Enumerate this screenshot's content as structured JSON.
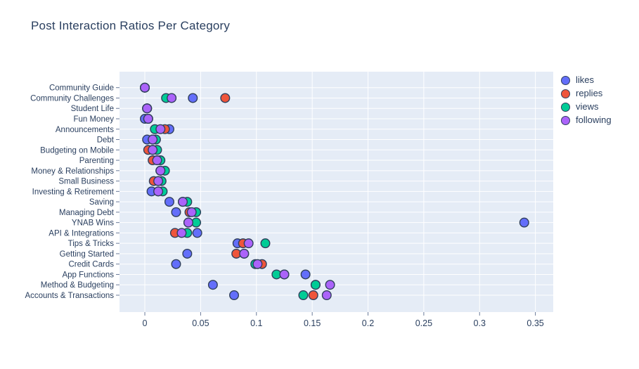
{
  "title": "Post Interaction Ratios Per Category",
  "colors": {
    "background": "#ffffff",
    "plot_background": "#e5ecf6",
    "grid": "#ffffff",
    "font": "#2a3f5f",
    "tick_mark": "#6b7b9a",
    "marker_edge": "#2f3f5c"
  },
  "legend": {
    "items": [
      {
        "label": "likes",
        "color": "#636efa"
      },
      {
        "label": "replies",
        "color": "#ef553b"
      },
      {
        "label": "views",
        "color": "#00cc96"
      },
      {
        "label": "following",
        "color": "#ab63fa"
      }
    ]
  },
  "chart_data": {
    "type": "scatter",
    "title": "Post Interaction Ratios Per Category",
    "xlabel": "",
    "ylabel": "",
    "grid": true,
    "legend_position": "right",
    "xlim": [
      -0.0227,
      0.366
    ],
    "x_ticks": [
      0,
      0.05,
      0.1,
      0.15,
      0.2,
      0.25,
      0.3,
      0.35
    ],
    "x_tick_labels": [
      "0",
      "0.05",
      "0.1",
      "0.15",
      "0.2",
      "0.25",
      "0.3",
      "0.35"
    ],
    "categories": [
      "Community Guide",
      "Community Challenges",
      "Student Life",
      "Fun Money",
      "Announcements",
      "Debt",
      "Budgeting on Mobile",
      "Parenting",
      "Money & Relationships",
      "Small Business",
      "Investing & Retirement",
      "Saving",
      "Managing Debt",
      "YNAB Wins",
      "API & Integrations",
      "Tips & Tricks",
      "Getting Started",
      "Credit Cards",
      "App Functions",
      "Method & Budgeting",
      "Accounts & Transactions"
    ],
    "series": [
      {
        "name": "likes",
        "color": "#636efa",
        "values": [
          0.0,
          0.043,
          0.002,
          0.0,
          0.022,
          0.002,
          0.007,
          0.011,
          0.014,
          0.012,
          0.006,
          0.022,
          0.028,
          0.34,
          0.047,
          0.083,
          0.038,
          0.028,
          0.144,
          0.061,
          0.08
        ]
      },
      {
        "name": "replies",
        "color": "#ef553b",
        "values": [
          0.0,
          0.072,
          0.002,
          0.003,
          0.018,
          0.007,
          0.003,
          0.007,
          0.014,
          0.008,
          0.012,
          0.034,
          0.04,
          0.039,
          0.027,
          0.088,
          0.082,
          0.105,
          0.125,
          0.153,
          0.151
        ]
      },
      {
        "name": "views",
        "color": "#00cc96",
        "values": [
          0.0,
          0.019,
          0.002,
          0.003,
          0.009,
          0.01,
          0.011,
          0.014,
          0.018,
          0.015,
          0.016,
          0.038,
          0.046,
          0.046,
          0.038,
          0.108,
          0.089,
          0.099,
          0.118,
          0.153,
          0.142
        ]
      },
      {
        "name": "following",
        "color": "#ab63fa",
        "values": [
          0.0,
          0.024,
          0.002,
          0.003,
          0.014,
          0.007,
          0.007,
          0.011,
          0.014,
          0.012,
          0.012,
          0.034,
          0.042,
          0.039,
          0.033,
          0.093,
          0.089,
          0.101,
          0.125,
          0.166,
          0.163
        ]
      }
    ],
    "marker": {
      "diameter": 12.6,
      "edge_width": 1.4
    }
  }
}
